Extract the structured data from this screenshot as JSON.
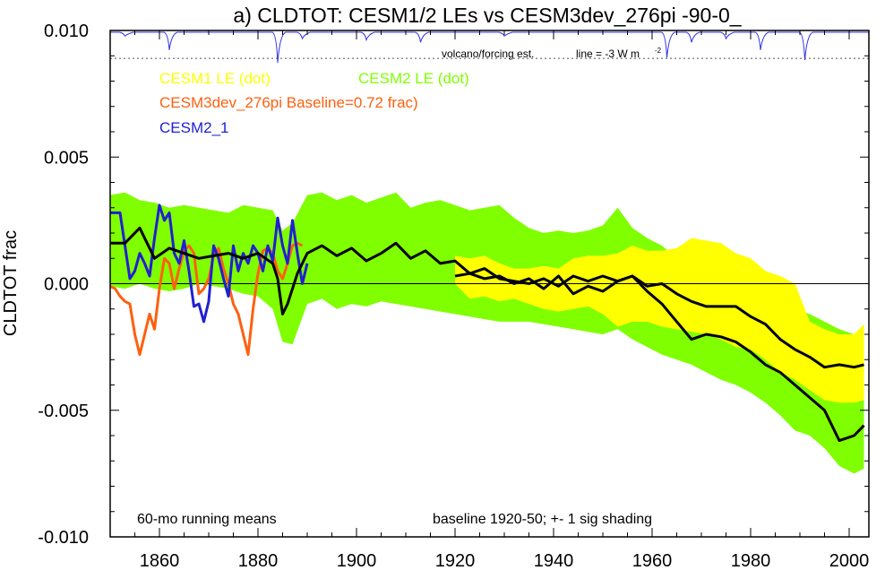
{
  "chart_data": {
    "type": "line",
    "title": "a) CLDTOT: CESM1/2 LEs vs CESM3dev_276pi -90-0_",
    "ylabel": "CLDTOT frac",
    "xlabel": "",
    "xlim": [
      1850,
      2004
    ],
    "ylim": [
      -0.01,
      0.01
    ],
    "x_ticks": [
      1860,
      1880,
      1900,
      1920,
      1940,
      1960,
      1980,
      2000
    ],
    "y_ticks": [
      "0.010",
      "0.005",
      "0.000",
      "-0.005",
      "-0.010"
    ],
    "y_tick_values": [
      0.01,
      0.005,
      0.0,
      -0.005,
      -0.01
    ],
    "zero_line": 0.0,
    "grid": false,
    "legend": {
      "placement": "top-left",
      "entries": [
        {
          "label": "CESM1 LE (dot)",
          "color": "#ffff00"
        },
        {
          "label": "CESM2 LE (dot)",
          "color": "#80ff00"
        },
        {
          "label": "CESM3dev_276pi Baseline=0.72 frac)",
          "color": "#ff6010"
        },
        {
          "label": "CESM2_1",
          "color": "#2020d0"
        }
      ]
    },
    "annotations": {
      "volcano": "volcano/forcing est.",
      "line_note": "line = -3 W m",
      "line_note_sup": "-2",
      "running_means": "60-mo running means",
      "baseline": "baseline 1920-50; +- 1 sig shading"
    },
    "colors": {
      "cesm1_band": "#ffff00",
      "cesm2_band": "#80ff00",
      "cesm3dev": "#ff6010",
      "cesm2_1": "#2020d0",
      "ensemble_mean": "#000000",
      "volcano": "#3030e0"
    },
    "volcano_threshold": 0.0089,
    "volcano_events": [
      {
        "year": 1853,
        "depth": 0.00015
      },
      {
        "year": 1862,
        "depth": 0.0007
      },
      {
        "year": 1884,
        "depth": 0.0012
      },
      {
        "year": 1889,
        "depth": 0.00025
      },
      {
        "year": 1902,
        "depth": 0.0003
      },
      {
        "year": 1913,
        "depth": 0.0004
      },
      {
        "year": 1930,
        "depth": 0.00015
      },
      {
        "year": 1963,
        "depth": 0.001
      },
      {
        "year": 1968,
        "depth": 0.0004
      },
      {
        "year": 1975,
        "depth": 0.00025
      },
      {
        "year": 1982,
        "depth": 0.0007
      },
      {
        "year": 1991,
        "depth": 0.0011
      }
    ],
    "series": [
      {
        "name": "CESM2 LE (dot)",
        "kind": "band",
        "x": [
          1850,
          1853,
          1856,
          1859,
          1862,
          1865,
          1868,
          1871,
          1874,
          1877,
          1880,
          1883,
          1885,
          1887,
          1890,
          1893,
          1896,
          1899,
          1902,
          1905,
          1908,
          1911,
          1914,
          1917,
          1920,
          1923,
          1926,
          1929,
          1932,
          1935,
          1938,
          1941,
          1944,
          1947,
          1950,
          1953,
          1956,
          1959,
          1962,
          1965,
          1968,
          1971,
          1974,
          1977,
          1980,
          1983,
          1986,
          1989,
          1992,
          1995,
          1998,
          2001,
          2003
        ],
        "upper": [
          0.0035,
          0.0036,
          0.0033,
          0.0032,
          0.003,
          0.0031,
          0.003,
          0.0029,
          0.0028,
          0.0031,
          0.003,
          0.0029,
          0.0021,
          0.0024,
          0.0035,
          0.0036,
          0.0033,
          0.0035,
          0.0032,
          0.0034,
          0.0036,
          0.003,
          0.0032,
          0.0033,
          0.0031,
          0.0029,
          0.003,
          0.0031,
          0.0026,
          0.0022,
          0.002,
          0.0021,
          0.002,
          0.0021,
          0.0023,
          0.003,
          0.0022,
          0.0018,
          0.0015,
          0.001,
          0.0008,
          0.0007,
          0.0004,
          0.0002,
          0.0001,
          -0.0002,
          -0.0005,
          -0.001,
          -0.0012,
          -0.0015,
          -0.0018,
          -0.002,
          -0.0021
        ],
        "lower": [
          -0.0001,
          -0.0002,
          0.0,
          -0.0002,
          -0.0003,
          -0.0002,
          0.0,
          -0.0001,
          -0.0002,
          -0.0004,
          -0.0005,
          -0.001,
          -0.0023,
          -0.0024,
          -0.0008,
          -0.0006,
          -0.001,
          -0.0008,
          -0.0009,
          -0.0007,
          -0.0008,
          -0.0009,
          -0.001,
          -0.0011,
          -0.0012,
          -0.0013,
          -0.0014,
          -0.0015,
          -0.0015,
          -0.0015,
          -0.0016,
          -0.0017,
          -0.0018,
          -0.0019,
          -0.002,
          -0.0018,
          -0.0022,
          -0.0025,
          -0.0028,
          -0.003,
          -0.0032,
          -0.0035,
          -0.0038,
          -0.004,
          -0.0043,
          -0.0047,
          -0.0052,
          -0.0058,
          -0.006,
          -0.0065,
          -0.0072,
          -0.0075,
          -0.0073
        ]
      },
      {
        "name": "CESM1 LE (dot)",
        "kind": "band",
        "x": [
          1920,
          1923,
          1926,
          1929,
          1932,
          1935,
          1938,
          1941,
          1944,
          1947,
          1950,
          1953,
          1956,
          1959,
          1962,
          1965,
          1968,
          1971,
          1974,
          1977,
          1980,
          1983,
          1986,
          1989,
          1992,
          1995,
          1998,
          2001,
          2003
        ],
        "upper": [
          0.0011,
          0.001,
          0.0011,
          0.0008,
          0.0006,
          0.0006,
          0.0007,
          0.0006,
          0.001,
          0.0011,
          0.0011,
          0.0012,
          0.0015,
          0.0013,
          0.0013,
          0.0014,
          0.0018,
          0.0017,
          0.0016,
          0.0012,
          0.001,
          0.0005,
          0.0003,
          0.0,
          -0.0015,
          -0.0018,
          -0.002,
          -0.002,
          -0.0016
        ],
        "lower": [
          0.0,
          -0.0006,
          -0.0005,
          -0.0007,
          -0.0006,
          -0.0008,
          -0.001,
          -0.0011,
          -0.001,
          -0.0009,
          -0.0012,
          -0.0017,
          -0.0015,
          -0.0015,
          -0.0017,
          -0.0018,
          -0.0019,
          -0.002,
          -0.0022,
          -0.0025,
          -0.0026,
          -0.003,
          -0.0035,
          -0.0038,
          -0.0042,
          -0.0046,
          -0.0047,
          -0.0047,
          -0.0046
        ]
      },
      {
        "name": "CESM3dev_276pi Baseline=0.72 frac)",
        "kind": "line",
        "x": [
          1850,
          1851,
          1852,
          1853,
          1854,
          1855,
          1856,
          1857,
          1858,
          1859,
          1860,
          1861,
          1862,
          1863,
          1864,
          1865,
          1866,
          1867,
          1868,
          1869,
          1870,
          1871,
          1872,
          1873,
          1874,
          1875,
          1876,
          1877,
          1878,
          1879,
          1880,
          1881,
          1882,
          1883,
          1884,
          1885,
          1886,
          1887,
          1888,
          1889
        ],
        "y": [
          -0.0001,
          -0.0002,
          -0.0005,
          -0.0007,
          -0.0008,
          -0.002,
          -0.0028,
          -0.002,
          -0.0012,
          -0.0018,
          -0.0002,
          0.001,
          0.0008,
          -0.0002,
          0.0006,
          0.0013,
          0.0015,
          0.0012,
          -0.0004,
          -0.0002,
          0.0002,
          0.0011,
          0.0014,
          0.0006,
          0.0,
          -0.0008,
          -0.0012,
          -0.002,
          -0.0028,
          -0.001,
          0.0004,
          0.0013,
          0.0014,
          0.0012,
          0.0005,
          0.0002,
          0.0008,
          0.0015,
          0.0016,
          0.0015
        ]
      },
      {
        "name": "CESM2_1",
        "kind": "line",
        "x": [
          1850,
          1851,
          1852,
          1853,
          1854,
          1855,
          1856,
          1857,
          1858,
          1859,
          1860,
          1861,
          1862,
          1863,
          1864,
          1865,
          1866,
          1867,
          1868,
          1869,
          1870,
          1871,
          1872,
          1873,
          1874,
          1875,
          1876,
          1877,
          1878,
          1879,
          1880,
          1881,
          1882,
          1883,
          1884,
          1885,
          1886,
          1887,
          1888,
          1889,
          1890
        ],
        "y": [
          0.0028,
          0.0028,
          0.0028,
          0.0015,
          0.0002,
          0.0005,
          0.0012,
          0.0008,
          0.0003,
          0.0018,
          0.0031,
          0.0025,
          0.0028,
          0.0012,
          0.0008,
          0.0017,
          0.0005,
          -0.0009,
          -0.0008,
          -0.0015,
          -0.0007,
          0.0015,
          0.001,
          0.0002,
          -0.0005,
          0.0015,
          0.0005,
          0.0012,
          0.0008,
          0.0015,
          0.0012,
          0.0005,
          0.0015,
          0.0009,
          0.0026,
          0.0015,
          0.0008,
          0.0025,
          0.0012,
          0.0,
          0.0008
        ]
      },
      {
        "name": "CESM2 LE ensemble mean",
        "kind": "mean",
        "x": [
          1850,
          1853,
          1856,
          1859,
          1862,
          1865,
          1868,
          1871,
          1874,
          1877,
          1880,
          1883,
          1884,
          1885,
          1886,
          1888,
          1890,
          1893,
          1896,
          1899,
          1902,
          1905,
          1908,
          1911,
          1914,
          1917,
          1920,
          1923,
          1926,
          1929,
          1932,
          1935,
          1938,
          1941,
          1944,
          1947,
          1950,
          1953,
          1956,
          1959,
          1962,
          1965,
          1968,
          1971,
          1974,
          1977,
          1980,
          1983,
          1986,
          1989,
          1992,
          1995,
          1998,
          2001,
          2003
        ],
        "y": [
          0.0016,
          0.0016,
          0.0022,
          0.001,
          0.0014,
          0.0012,
          0.001,
          0.0011,
          0.0012,
          0.001,
          0.0012,
          0.0008,
          0.0002,
          -0.0012,
          -0.0008,
          0.0004,
          0.0012,
          0.0015,
          0.0011,
          0.0014,
          0.0009,
          0.0012,
          0.0016,
          0.001,
          0.0013,
          0.0008,
          0.0009,
          0.0004,
          0.0002,
          0.0003,
          0.0,
          0.0002,
          -0.0002,
          0.0003,
          -0.0004,
          -0.0001,
          -0.0003,
          0.0001,
          0.0003,
          -0.0003,
          -0.0008,
          -0.0015,
          -0.0022,
          -0.002,
          -0.0021,
          -0.0023,
          -0.0027,
          -0.0032,
          -0.0035,
          -0.004,
          -0.0045,
          -0.005,
          -0.0062,
          -0.006,
          -0.0056
        ]
      },
      {
        "name": "CESM1 LE ensemble mean",
        "kind": "mean",
        "x": [
          1920,
          1923,
          1926,
          1929,
          1932,
          1935,
          1938,
          1941,
          1944,
          1947,
          1950,
          1953,
          1956,
          1959,
          1962,
          1965,
          1968,
          1971,
          1974,
          1977,
          1980,
          1983,
          1986,
          1989,
          1992,
          1995,
          1998,
          2001,
          2003
        ],
        "y": [
          0.0003,
          0.0004,
          0.0006,
          0.0002,
          0.0001,
          0.0,
          0.0002,
          -0.0001,
          0.0003,
          0.0001,
          0.0003,
          0.0001,
          0.0003,
          -0.0001,
          0.0,
          -0.0004,
          -0.0007,
          -0.0009,
          -0.0009,
          -0.0009,
          -0.0013,
          -0.0016,
          -0.0022,
          -0.0026,
          -0.0029,
          -0.0033,
          -0.0032,
          -0.0033,
          -0.0032
        ]
      }
    ]
  }
}
